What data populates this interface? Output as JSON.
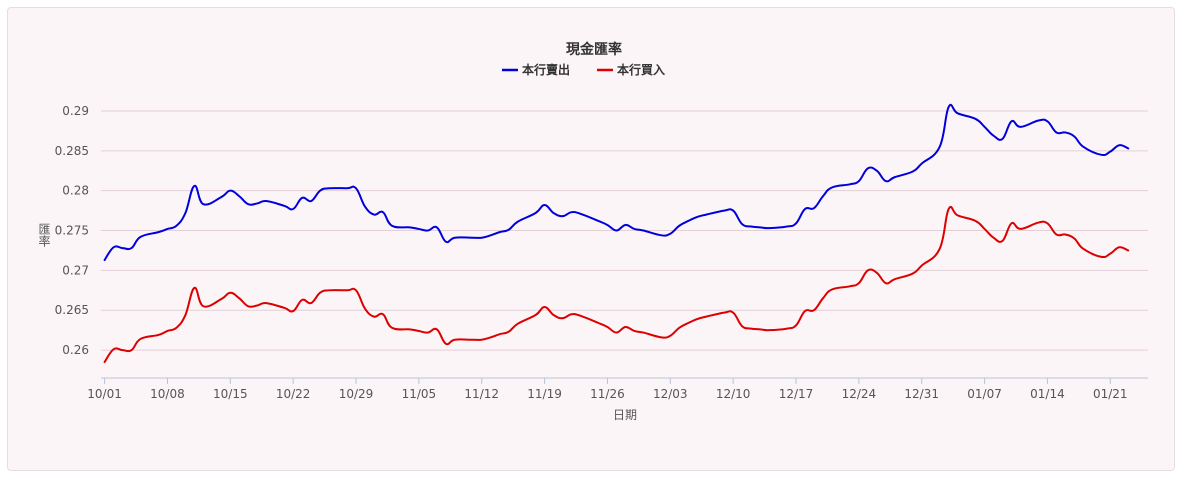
{
  "chart_data": {
    "type": "line",
    "title": "現金匯率",
    "xlabel": "日期",
    "ylabel": "匯率",
    "legend_position": "top-center",
    "grid": true,
    "ylim": [
      0.2565,
      0.2915
    ],
    "yticks": [
      0.26,
      0.265,
      0.27,
      0.275,
      0.28,
      0.285,
      0.29
    ],
    "ytick_labels": [
      "0.26",
      "0.265",
      "0.27",
      "0.275",
      "0.28",
      "0.285",
      "0.29"
    ],
    "xticks": [
      {
        "label": "10/01",
        "date": "2024-10-01"
      },
      {
        "label": "10/08",
        "date": "2024-10-08"
      },
      {
        "label": "10/15",
        "date": "2024-10-15"
      },
      {
        "label": "10/22",
        "date": "2024-10-22"
      },
      {
        "label": "10/29",
        "date": "2024-10-29"
      },
      {
        "label": "11/05",
        "date": "2024-11-05"
      },
      {
        "label": "11/12",
        "date": "2024-11-12"
      },
      {
        "label": "11/19",
        "date": "2024-11-19"
      },
      {
        "label": "11/26",
        "date": "2024-11-26"
      },
      {
        "label": "12/03",
        "date": "2024-12-03"
      },
      {
        "label": "12/10",
        "date": "2024-12-10"
      },
      {
        "label": "12/17",
        "date": "2024-12-17"
      },
      {
        "label": "12/24",
        "date": "2024-12-24"
      },
      {
        "label": "12/31",
        "date": "2024-12-31"
      },
      {
        "label": "01/07",
        "date": "2025-01-07"
      },
      {
        "label": "01/14",
        "date": "2025-01-14"
      },
      {
        "label": "01/21",
        "date": "2025-01-21"
      }
    ],
    "x": [
      "2024-10-01",
      "2024-10-02",
      "2024-10-03",
      "2024-10-04",
      "2024-10-05",
      "2024-10-07",
      "2024-10-08",
      "2024-10-09",
      "2024-10-10",
      "2024-10-11",
      "2024-10-12",
      "2024-10-14",
      "2024-10-15",
      "2024-10-16",
      "2024-10-17",
      "2024-10-18",
      "2024-10-19",
      "2024-10-21",
      "2024-10-22",
      "2024-10-23",
      "2024-10-24",
      "2024-10-25",
      "2024-10-26",
      "2024-10-28",
      "2024-10-29",
      "2024-10-30",
      "2024-10-31",
      "2024-11-01",
      "2024-11-02",
      "2024-11-04",
      "2024-11-05",
      "2024-11-06",
      "2024-11-07",
      "2024-11-08",
      "2024-11-09",
      "2024-11-11",
      "2024-11-12",
      "2024-11-13",
      "2024-11-14",
      "2024-11-15",
      "2024-11-16",
      "2024-11-18",
      "2024-11-19",
      "2024-11-20",
      "2024-11-21",
      "2024-11-22",
      "2024-11-23",
      "2024-11-25",
      "2024-11-26",
      "2024-11-27",
      "2024-11-28",
      "2024-11-29",
      "2024-11-30",
      "2024-12-02",
      "2024-12-03",
      "2024-12-04",
      "2024-12-05",
      "2024-12-06",
      "2024-12-07",
      "2024-12-09",
      "2024-12-10",
      "2024-12-11",
      "2024-12-12",
      "2024-12-13",
      "2024-12-14",
      "2024-12-16",
      "2024-12-17",
      "2024-12-18",
      "2024-12-19",
      "2024-12-20",
      "2024-12-21",
      "2024-12-23",
      "2024-12-24",
      "2024-12-25",
      "2024-12-26",
      "2024-12-27",
      "2024-12-28",
      "2024-12-30",
      "2024-12-31",
      "2025-01-02",
      "2025-01-03",
      "2025-01-04",
      "2025-01-06",
      "2025-01-07",
      "2025-01-08",
      "2025-01-09",
      "2025-01-10",
      "2025-01-11",
      "2025-01-13",
      "2025-01-14",
      "2025-01-15",
      "2025-01-16",
      "2025-01-17",
      "2025-01-18",
      "2025-01-20",
      "2025-01-21",
      "2025-01-22",
      "2025-01-23"
    ],
    "series": [
      {
        "name": "本行賣出",
        "color": "#0000dd",
        "values": [
          0.2713,
          0.2729,
          0.2728,
          0.2728,
          0.2742,
          0.2748,
          0.2752,
          0.2756,
          0.2772,
          0.2806,
          0.2783,
          0.2792,
          0.28,
          0.2793,
          0.2783,
          0.2784,
          0.2787,
          0.2781,
          0.2777,
          0.2791,
          0.2787,
          0.28,
          0.2803,
          0.2803,
          0.2803,
          0.278,
          0.277,
          0.2773,
          0.2756,
          0.2754,
          0.2752,
          0.275,
          0.2754,
          0.2736,
          0.2741,
          0.2741,
          0.2741,
          0.2744,
          0.2748,
          0.2751,
          0.2761,
          0.2772,
          0.2782,
          0.2772,
          0.2768,
          0.2773,
          0.2771,
          0.2762,
          0.2757,
          0.275,
          0.2757,
          0.2752,
          0.275,
          0.2744,
          0.2746,
          0.2756,
          0.2762,
          0.2767,
          0.277,
          0.2775,
          0.2775,
          0.2758,
          0.2755,
          0.2754,
          0.2753,
          0.2755,
          0.2759,
          0.2777,
          0.2778,
          0.2793,
          0.2804,
          0.2808,
          0.2812,
          0.2828,
          0.2825,
          0.2812,
          0.2817,
          0.2824,
          0.2834,
          0.2855,
          0.2905,
          0.2897,
          0.289,
          0.288,
          0.2869,
          0.2865,
          0.2887,
          0.288,
          0.2888,
          0.2887,
          0.2873,
          0.2873,
          0.2868,
          0.2855,
          0.2845,
          0.2849,
          0.2857,
          0.2853
        ]
      },
      {
        "name": "本行買入",
        "color": "#dd0000",
        "values": [
          0.2585,
          0.2601,
          0.26,
          0.26,
          0.2614,
          0.2619,
          0.2624,
          0.2628,
          0.2644,
          0.2678,
          0.2655,
          0.2664,
          0.2672,
          0.2665,
          0.2655,
          0.2656,
          0.2659,
          0.2653,
          0.2649,
          0.2663,
          0.2659,
          0.2672,
          0.2675,
          0.2675,
          0.2675,
          0.2652,
          0.2642,
          0.2645,
          0.2628,
          0.2626,
          0.2624,
          0.2622,
          0.2626,
          0.2608,
          0.2613,
          0.2613,
          0.2613,
          0.2616,
          0.262,
          0.2623,
          0.2633,
          0.2644,
          0.2654,
          0.2644,
          0.264,
          0.2645,
          0.2643,
          0.2634,
          0.2629,
          0.2622,
          0.2629,
          0.2624,
          0.2622,
          0.2616,
          0.2618,
          0.2628,
          0.2634,
          0.2639,
          0.2642,
          0.2647,
          0.2647,
          0.263,
          0.2627,
          0.2626,
          0.2625,
          0.2627,
          0.2631,
          0.2649,
          0.265,
          0.2665,
          0.2676,
          0.268,
          0.2684,
          0.27,
          0.2697,
          0.2684,
          0.2689,
          0.2696,
          0.2706,
          0.2727,
          0.2777,
          0.2769,
          0.2762,
          0.2752,
          0.2741,
          0.2737,
          0.2759,
          0.2752,
          0.276,
          0.2759,
          0.2745,
          0.2745,
          0.274,
          0.2727,
          0.2717,
          0.2721,
          0.2729,
          0.2725
        ]
      }
    ]
  }
}
